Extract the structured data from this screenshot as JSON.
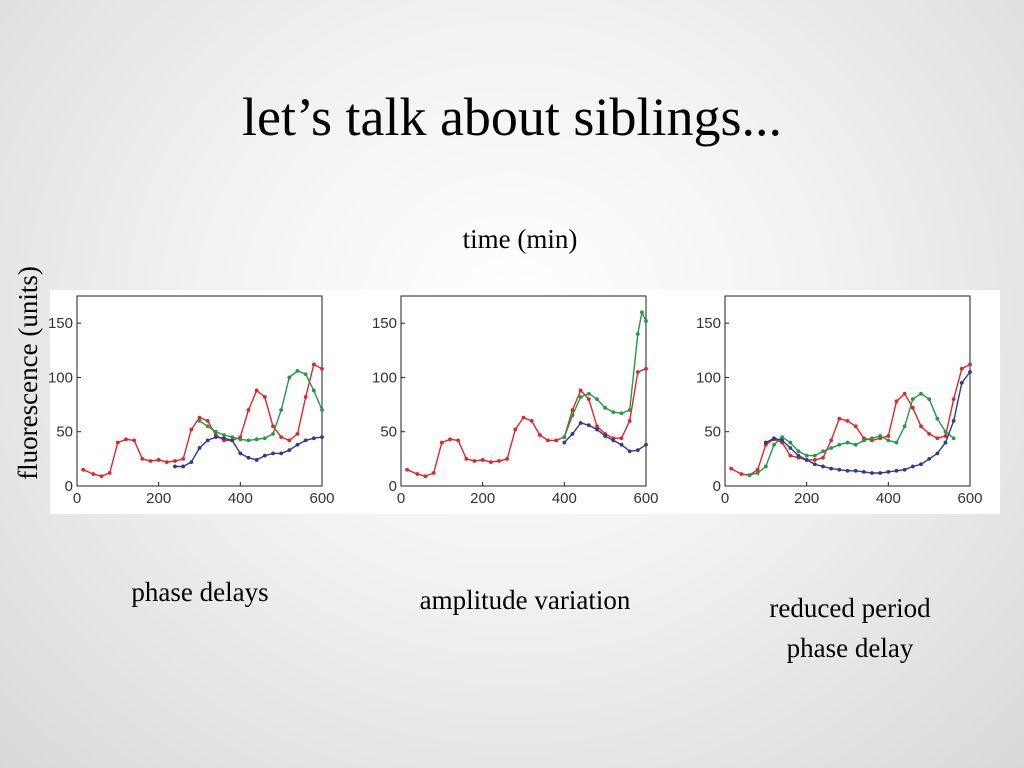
{
  "slide": {
    "title": "let’s talk about siblings...",
    "xlabel": "time (min)",
    "ylabel": "fluorescence (units)"
  },
  "captions": [
    {
      "lines": [
        "phase delays"
      ]
    },
    {
      "lines": [
        "amplitude variation"
      ]
    },
    {
      "lines": [
        "reduced period",
        "phase delay"
      ]
    }
  ],
  "chart_data": [
    {
      "type": "line",
      "xlim": [
        0,
        600
      ],
      "ylim": [
        0,
        175
      ],
      "xticks": [
        0,
        200,
        400,
        600
      ],
      "yticks": [
        0,
        50,
        100,
        150
      ],
      "grid": false,
      "series": [
        {
          "color": "#e0262b",
          "x": [
            15,
            40,
            60,
            80,
            100,
            120,
            140,
            160,
            180,
            200,
            220,
            240,
            260,
            280,
            300,
            320,
            340,
            360,
            380,
            400,
            420,
            440,
            460,
            480,
            500,
            520,
            540,
            560,
            580,
            600
          ],
          "y": [
            15,
            11,
            9,
            12,
            40,
            43,
            42,
            25,
            23,
            24,
            22,
            23,
            25,
            52,
            63,
            60,
            47,
            42,
            42,
            45,
            70,
            88,
            82,
            55,
            45,
            42,
            48,
            82,
            112,
            108
          ]
        },
        {
          "color": "#1f9a45",
          "x": [
            300,
            320,
            340,
            360,
            380,
            400,
            420,
            440,
            460,
            480,
            500,
            520,
            540,
            560,
            580,
            600
          ],
          "y": [
            60,
            55,
            50,
            47,
            45,
            43,
            42,
            43,
            44,
            48,
            70,
            100,
            106,
            103,
            88,
            70
          ]
        },
        {
          "color": "#2d3a8f",
          "x": [
            240,
            260,
            280,
            300,
            320,
            340,
            360,
            380,
            400,
            420,
            440,
            460,
            480,
            500,
            520,
            540,
            560,
            580,
            600
          ],
          "y": [
            18,
            18,
            22,
            35,
            42,
            45,
            44,
            42,
            30,
            26,
            24,
            28,
            30,
            30,
            33,
            38,
            42,
            44,
            45
          ]
        }
      ]
    },
    {
      "type": "line",
      "xlim": [
        0,
        600
      ],
      "ylim": [
        0,
        175
      ],
      "xticks": [
        0,
        200,
        400,
        600
      ],
      "yticks": [
        0,
        50,
        100,
        150
      ],
      "grid": false,
      "series": [
        {
          "color": "#e0262b",
          "x": [
            15,
            40,
            60,
            80,
            100,
            120,
            140,
            160,
            180,
            200,
            220,
            240,
            260,
            280,
            300,
            320,
            340,
            360,
            380,
            400,
            420,
            440,
            460,
            480,
            500,
            520,
            540,
            560,
            580,
            600
          ],
          "y": [
            15,
            11,
            9,
            12,
            40,
            43,
            42,
            25,
            23,
            24,
            22,
            23,
            25,
            52,
            63,
            60,
            47,
            42,
            42,
            45,
            70,
            88,
            80,
            55,
            48,
            44,
            44,
            60,
            105,
            108
          ]
        },
        {
          "color": "#1f9a45",
          "x": [
            400,
            420,
            440,
            460,
            480,
            500,
            520,
            540,
            560,
            580,
            590,
            600
          ],
          "y": [
            45,
            65,
            82,
            85,
            80,
            72,
            68,
            67,
            70,
            140,
            160,
            152
          ]
        },
        {
          "color": "#2d3a8f",
          "x": [
            400,
            420,
            440,
            460,
            480,
            500,
            520,
            540,
            560,
            580,
            600
          ],
          "y": [
            40,
            48,
            58,
            56,
            52,
            46,
            42,
            38,
            32,
            33,
            38
          ]
        }
      ]
    },
    {
      "type": "line",
      "xlim": [
        0,
        600
      ],
      "ylim": [
        0,
        175
      ],
      "xticks": [
        0,
        200,
        400,
        600
      ],
      "yticks": [
        0,
        50,
        100,
        150
      ],
      "grid": false,
      "series": [
        {
          "color": "#e0262b",
          "x": [
            15,
            40,
            60,
            80,
            100,
            120,
            140,
            160,
            180,
            200,
            220,
            240,
            260,
            280,
            300,
            320,
            340,
            360,
            380,
            400,
            420,
            440,
            460,
            480,
            500,
            520,
            540,
            560,
            580,
            600
          ],
          "y": [
            16,
            11,
            10,
            15,
            38,
            43,
            40,
            28,
            26,
            24,
            24,
            26,
            42,
            62,
            60,
            55,
            44,
            42,
            44,
            46,
            78,
            85,
            72,
            55,
            48,
            44,
            46,
            80,
            108,
            112
          ]
        },
        {
          "color": "#1f9a45",
          "x": [
            60,
            80,
            100,
            120,
            140,
            160,
            180,
            200,
            220,
            240,
            260,
            280,
            300,
            320,
            340,
            360,
            380,
            400,
            420,
            440,
            460,
            480,
            500,
            520,
            540,
            560
          ],
          "y": [
            10,
            12,
            18,
            38,
            45,
            40,
            32,
            28,
            28,
            32,
            35,
            38,
            40,
            38,
            42,
            44,
            46,
            42,
            40,
            55,
            80,
            85,
            80,
            62,
            50,
            44
          ]
        },
        {
          "color": "#2d3a8f",
          "x": [
            100,
            120,
            140,
            160,
            180,
            200,
            220,
            240,
            260,
            280,
            300,
            320,
            340,
            360,
            380,
            400,
            420,
            440,
            460,
            480,
            500,
            520,
            540,
            560,
            580,
            600
          ],
          "y": [
            40,
            44,
            42,
            35,
            28,
            24,
            20,
            18,
            16,
            15,
            14,
            14,
            13,
            12,
            12,
            13,
            14,
            15,
            18,
            20,
            25,
            30,
            40,
            60,
            95,
            105
          ]
        }
      ]
    }
  ]
}
